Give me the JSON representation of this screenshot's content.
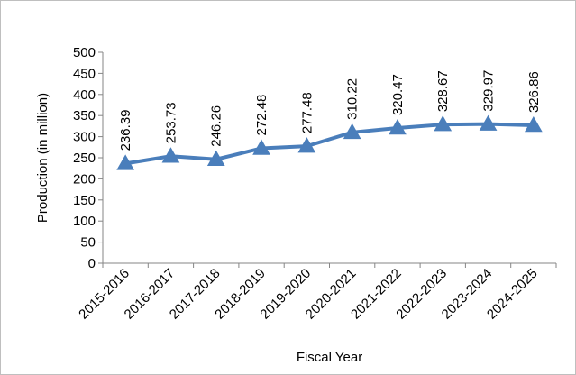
{
  "chart_data": {
    "type": "line",
    "title": "",
    "xlabel": "Fiscal Year",
    "ylabel": "Production (in million)",
    "categories": [
      "2015-2016",
      "2016-2017",
      "2017-2018",
      "2018-2019",
      "2019-2020",
      "2020-2021",
      "2021-2022",
      "2022-2023",
      "2023-2024",
      "2024-2025"
    ],
    "series": [
      {
        "values": [
          236.39,
          253.73,
          246.26,
          272.48,
          277.48,
          310.22,
          320.47,
          328.67,
          329.97,
          326.86
        ],
        "data_labels": [
          "236.39",
          "253.73",
          "246.26",
          "272.48",
          "277.48",
          "310.22",
          "320.47",
          "328.67",
          "329.97",
          "326.86"
        ],
        "color": "#4a7ebb",
        "marker": "triangle"
      }
    ],
    "ylim": [
      0,
      500
    ],
    "yticks": [
      "0",
      "50",
      "100",
      "150",
      "200",
      "250",
      "300",
      "350",
      "400",
      "450",
      "500"
    ],
    "grid": false,
    "legend": "none"
  }
}
